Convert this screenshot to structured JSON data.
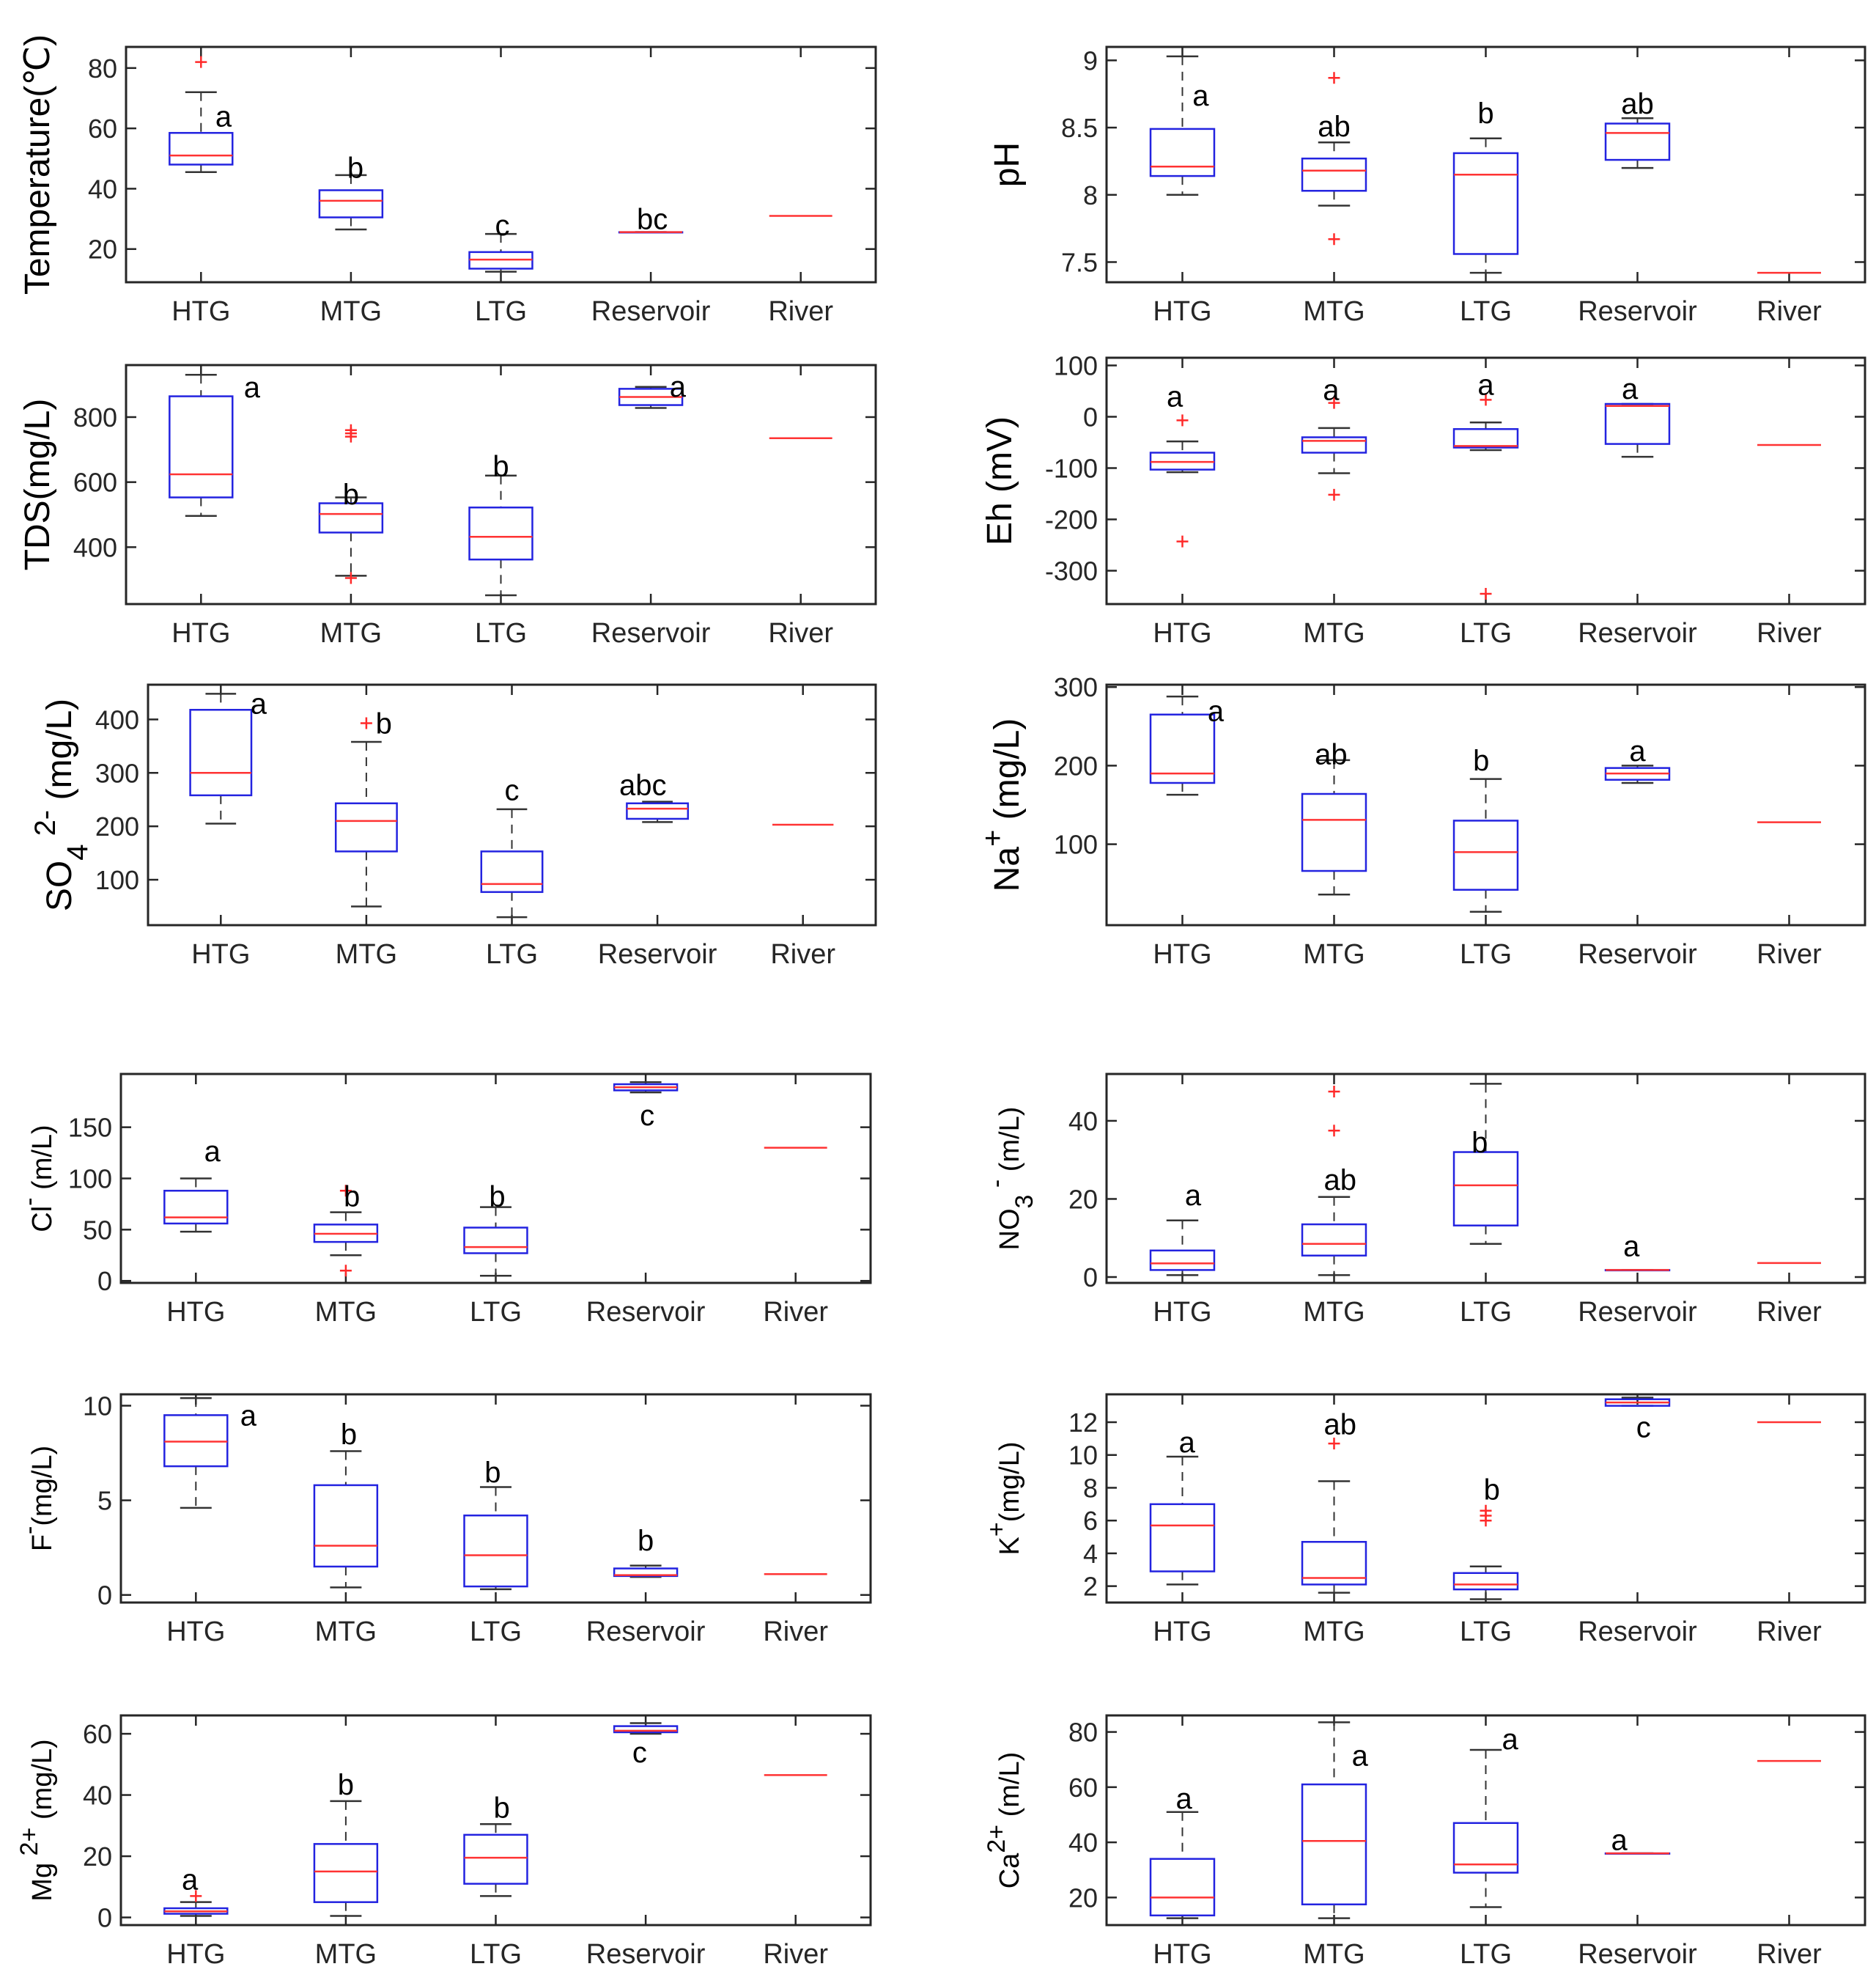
{
  "figure": {
    "categories": [
      "HTG",
      "MTG",
      "LTG",
      "Reservoir",
      "River"
    ]
  },
  "chart_data": [
    {
      "type": "box",
      "ylabel": "Temperature(℃)",
      "ylim": [
        9,
        87
      ],
      "yticks": [
        20,
        40,
        60,
        80
      ],
      "boxes": [
        {
          "category": "HTG",
          "whisker_low": 45.5,
          "q1": 48,
          "median": 51,
          "q3": 58.5,
          "whisker_high": 72,
          "outliers": [
            82
          ]
        },
        {
          "category": "MTG",
          "whisker_low": 26.5,
          "q1": 30.5,
          "median": 36,
          "q3": 39.5,
          "whisker_high": 44.5,
          "outliers": []
        },
        {
          "category": "LTG",
          "whisker_low": 12.5,
          "q1": 13.5,
          "median": 16.5,
          "q3": 19,
          "whisker_high": 25,
          "outliers": []
        },
        {
          "category": "Reservoir",
          "whisker_low": 25.6,
          "q1": 25.6,
          "median": 25.6,
          "q3": 25.6,
          "whisker_high": 25.6,
          "outliers": []
        },
        {
          "category": "River",
          "median": 31
        }
      ],
      "letters": [
        {
          "category": "HTG",
          "text": "a",
          "y": 64,
          "dx": 0.15
        },
        {
          "category": "MTG",
          "text": "b",
          "y": 47,
          "dx": 0.03
        },
        {
          "category": "LTG",
          "text": "c",
          "y": 28,
          "dx": 0.01
        },
        {
          "category": "Reservoir",
          "text": "bc",
          "y": 30,
          "dx": 0.01
        }
      ]
    },
    {
      "type": "box",
      "ylabel": "pH",
      "ylim": [
        7.35,
        9.1
      ],
      "yticks": [
        7.5,
        8,
        8.5,
        9
      ],
      "boxes": [
        {
          "category": "HTG",
          "whisker_low": 8.0,
          "q1": 8.14,
          "median": 8.21,
          "q3": 8.49,
          "whisker_high": 9.03,
          "outliers": []
        },
        {
          "category": "MTG",
          "whisker_low": 7.92,
          "q1": 8.03,
          "median": 8.18,
          "q3": 8.27,
          "whisker_high": 8.39,
          "outliers": [
            8.87,
            7.67
          ]
        },
        {
          "category": "LTG",
          "whisker_low": 7.42,
          "q1": 7.56,
          "median": 8.15,
          "q3": 8.31,
          "whisker_high": 8.42,
          "outliers": []
        },
        {
          "category": "Reservoir",
          "whisker_low": 8.2,
          "q1": 8.26,
          "median": 8.46,
          "q3": 8.53,
          "whisker_high": 8.57,
          "outliers": []
        },
        {
          "category": "River",
          "median": 7.42
        }
      ],
      "letters": [
        {
          "category": "HTG",
          "text": "a",
          "y": 8.74,
          "dx": 0.12
        },
        {
          "category": "MTG",
          "text": "ab",
          "y": 8.51,
          "dx": 0
        },
        {
          "category": "LTG",
          "text": "b",
          "y": 8.61,
          "dx": 0
        },
        {
          "category": "Reservoir",
          "text": "ab",
          "y": 8.68,
          "dx": 0
        }
      ]
    },
    {
      "type": "box",
      "ylabel": "TDS(mg/L)",
      "ylim": [
        225,
        960
      ],
      "yticks": [
        400,
        600,
        800
      ],
      "boxes": [
        {
          "category": "HTG",
          "whisker_low": 496,
          "q1": 553,
          "median": 624,
          "q3": 864,
          "whisker_high": 930,
          "outliers": []
        },
        {
          "category": "MTG",
          "whisker_low": 312,
          "q1": 445,
          "median": 502,
          "q3": 535,
          "whisker_high": 553,
          "outliers": [
            760,
            750,
            740,
            305
          ]
        },
        {
          "category": "LTG",
          "whisker_low": 252,
          "q1": 362,
          "median": 432,
          "q3": 522,
          "whisker_high": 620,
          "outliers": []
        },
        {
          "category": "Reservoir",
          "whisker_low": 828,
          "q1": 837,
          "median": 862,
          "q3": 887,
          "whisker_high": 893,
          "outliers": []
        },
        {
          "category": "River",
          "median": 735
        }
      ],
      "letters": [
        {
          "category": "HTG",
          "text": "a",
          "y": 892,
          "dx": 0.34
        },
        {
          "category": "MTG",
          "text": "b",
          "y": 563,
          "dx": 0
        },
        {
          "category": "LTG",
          "text": "b",
          "y": 650,
          "dx": 0
        },
        {
          "category": "Reservoir",
          "text": "a",
          "y": 895,
          "dx": 0.18
        }
      ]
    },
    {
      "type": "box",
      "ylabel": "Eh (mV)",
      "ylim": [
        -365,
        115
      ],
      "yticks": [
        -300,
        -200,
        -100,
        0,
        100
      ],
      "boxes": [
        {
          "category": "HTG",
          "whisker_low": -108,
          "q1": -103,
          "median": -88,
          "q3": -70,
          "whisker_high": -48,
          "outliers": [
            -7,
            -243
          ]
        },
        {
          "category": "MTG",
          "whisker_low": -110,
          "q1": -70,
          "median": -47,
          "q3": -40,
          "whisker_high": -22,
          "outliers": [
            27,
            -152
          ]
        },
        {
          "category": "LTG",
          "whisker_low": -65,
          "q1": -60,
          "median": -57,
          "q3": -24,
          "whisker_high": -11,
          "outliers": [
            33,
            -345
          ]
        },
        {
          "category": "Reservoir",
          "whisker_low": -78,
          "q1": -53,
          "median": 21,
          "q3": 25,
          "whisker_high": 25,
          "outliers": []
        },
        {
          "category": "River",
          "median": -55
        }
      ],
      "letters": [
        {
          "category": "HTG",
          "text": "a",
          "y": 40,
          "dx": -0.05
        },
        {
          "category": "MTG",
          "text": "a",
          "y": 53,
          "dx": -0.02
        },
        {
          "category": "LTG",
          "text": "a",
          "y": 63,
          "dx": 0
        },
        {
          "category": "Reservoir",
          "text": "a",
          "y": 55,
          "dx": -0.05
        }
      ]
    },
    {
      "type": "box",
      "ylabel": "SO4 2- (mg/L)",
      "ylim": [
        15,
        465
      ],
      "yticks": [
        100,
        200,
        300,
        400
      ],
      "boxes": [
        {
          "category": "HTG",
          "whisker_low": 205,
          "q1": 258,
          "median": 300,
          "q3": 418,
          "whisker_high": 448,
          "outliers": []
        },
        {
          "category": "MTG",
          "whisker_low": 50,
          "q1": 153,
          "median": 210,
          "q3": 243,
          "whisker_high": 358,
          "outliers": [
            393
          ]
        },
        {
          "category": "LTG",
          "whisker_low": 30,
          "q1": 77,
          "median": 92,
          "q3": 153,
          "whisker_high": 232,
          "outliers": []
        },
        {
          "category": "Reservoir",
          "whisker_low": 208,
          "q1": 214,
          "median": 233,
          "q3": 243,
          "whisker_high": 246,
          "outliers": []
        },
        {
          "category": "River",
          "median": 203
        }
      ],
      "letters": [
        {
          "category": "HTG",
          "text": "a",
          "y": 430,
          "dx": 0.26
        },
        {
          "category": "MTG",
          "text": "b",
          "y": 393,
          "dx": 0.12
        },
        {
          "category": "LTG",
          "text": "c",
          "y": 268,
          "dx": 0
        },
        {
          "category": "Reservoir",
          "text": "abc",
          "y": 278,
          "dx": -0.1
        }
      ]
    },
    {
      "type": "box",
      "ylabel": "Na+ (mg/L)",
      "ylim": [
        -3,
        303
      ],
      "yticks": [
        100,
        200,
        300
      ],
      "boxes": [
        {
          "category": "HTG",
          "whisker_low": 163,
          "q1": 178,
          "median": 190,
          "q3": 265,
          "whisker_high": 288,
          "outliers": []
        },
        {
          "category": "MTG",
          "whisker_low": 36,
          "q1": 66,
          "median": 131,
          "q3": 164,
          "whisker_high": 207,
          "outliers": []
        },
        {
          "category": "LTG",
          "whisker_low": 14,
          "q1": 42,
          "median": 90,
          "q3": 130,
          "whisker_high": 183,
          "outliers": []
        },
        {
          "category": "Reservoir",
          "whisker_low": 178,
          "q1": 182,
          "median": 190,
          "q3": 197,
          "whisker_high": 200,
          "outliers": []
        },
        {
          "category": "River",
          "median": 128
        }
      ],
      "letters": [
        {
          "category": "HTG",
          "text": "a",
          "y": 270,
          "dx": 0.22
        },
        {
          "category": "MTG",
          "text": "ab",
          "y": 215,
          "dx": -0.02
        },
        {
          "category": "LTG",
          "text": "b",
          "y": 207,
          "dx": -0.03
        },
        {
          "category": "Reservoir",
          "text": "a",
          "y": 219,
          "dx": 0
        }
      ]
    },
    {
      "type": "box",
      "ylabel": "Cl- (m/L)",
      "ylim": [
        -2,
        202
      ],
      "yticks": [
        0,
        50,
        100,
        150
      ],
      "boxes": [
        {
          "category": "HTG",
          "whisker_low": 48,
          "q1": 56,
          "median": 62,
          "q3": 88,
          "whisker_high": 100,
          "outliers": []
        },
        {
          "category": "MTG",
          "whisker_low": 25,
          "q1": 38,
          "median": 46,
          "q3": 55,
          "whisker_high": 67,
          "outliers": [
            88,
            10
          ]
        },
        {
          "category": "LTG",
          "whisker_low": 5,
          "q1": 27,
          "median": 33,
          "q3": 52,
          "whisker_high": 72,
          "outliers": []
        },
        {
          "category": "Reservoir",
          "whisker_low": 184,
          "q1": 186,
          "median": 189,
          "q3": 192,
          "whisker_high": 194,
          "outliers": []
        },
        {
          "category": "River",
          "median": 130
        }
      ],
      "letters": [
        {
          "category": "HTG",
          "text": "a",
          "y": 127,
          "dx": 0.11
        },
        {
          "category": "MTG",
          "text": "b",
          "y": 83,
          "dx": 0.04
        },
        {
          "category": "LTG",
          "text": "b",
          "y": 83,
          "dx": 0.01
        },
        {
          "category": "Reservoir",
          "text": "c",
          "y": 162,
          "dx": 0.01
        }
      ]
    },
    {
      "type": "box",
      "ylabel": "NO3 - (m/L)",
      "ylim": [
        -1.5,
        52
      ],
      "yticks": [
        0,
        20,
        40
      ],
      "boxes": [
        {
          "category": "HTG",
          "whisker_low": 0.5,
          "q1": 1.8,
          "median": 3.5,
          "q3": 6.8,
          "whisker_high": 14.5,
          "outliers": []
        },
        {
          "category": "MTG",
          "whisker_low": 0.5,
          "q1": 5.5,
          "median": 8.5,
          "q3": 13.5,
          "whisker_high": 20.5,
          "outliers": [
            47.5,
            37.5
          ]
        },
        {
          "category": "LTG",
          "whisker_low": 8.5,
          "q1": 13.2,
          "median": 23.5,
          "q3": 32,
          "whisker_high": 49.5,
          "outliers": []
        },
        {
          "category": "Reservoir",
          "whisker_low": 1.8,
          "q1": 1.8,
          "median": 1.8,
          "q3": 1.8,
          "whisker_high": 1.8,
          "outliers": []
        },
        {
          "category": "River",
          "median": 3.6
        }
      ],
      "letters": [
        {
          "category": "HTG",
          "text": "a",
          "y": 21,
          "dx": 0.07
        },
        {
          "category": "MTG",
          "text": "ab",
          "y": 25,
          "dx": 0.04
        },
        {
          "category": "LTG",
          "text": "b",
          "y": 34.5,
          "dx": -0.04
        },
        {
          "category": "Reservoir",
          "text": "a",
          "y": 8,
          "dx": -0.04
        }
      ]
    },
    {
      "type": "box",
      "ylabel": "F- (mg/L)",
      "ylim": [
        -0.4,
        10.6
      ],
      "yticks": [
        0,
        5,
        10
      ],
      "boxes": [
        {
          "category": "HTG",
          "whisker_low": 4.6,
          "q1": 6.8,
          "median": 8.1,
          "q3": 9.5,
          "whisker_high": 10.4,
          "outliers": []
        },
        {
          "category": "MTG",
          "whisker_low": 0.4,
          "q1": 1.5,
          "median": 2.6,
          "q3": 5.8,
          "whisker_high": 7.6,
          "outliers": []
        },
        {
          "category": "LTG",
          "whisker_low": 0.3,
          "q1": 0.45,
          "median": 2.1,
          "q3": 4.2,
          "whisker_high": 5.7,
          "outliers": []
        },
        {
          "category": "Reservoir",
          "whisker_low": 0.95,
          "q1": 1.0,
          "median": 1.05,
          "q3": 1.4,
          "whisker_high": 1.55,
          "outliers": []
        },
        {
          "category": "River",
          "median": 1.1
        }
      ],
      "letters": [
        {
          "category": "HTG",
          "text": "a",
          "y": 9.5,
          "dx": 0.35
        },
        {
          "category": "MTG",
          "text": "b",
          "y": 8.5,
          "dx": 0.02
        },
        {
          "category": "LTG",
          "text": "b",
          "y": 6.5,
          "dx": -0.02
        },
        {
          "category": "Reservoir",
          "text": "b",
          "y": 2.9,
          "dx": 0
        }
      ]
    },
    {
      "type": "box",
      "ylabel": "K+ (mg/L)",
      "ylim": [
        1,
        13.7
      ],
      "yticks": [
        2,
        4,
        6,
        8,
        10,
        12
      ],
      "boxes": [
        {
          "category": "HTG",
          "whisker_low": 2.1,
          "q1": 2.9,
          "median": 5.7,
          "q3": 7.0,
          "whisker_high": 9.9,
          "outliers": []
        },
        {
          "category": "MTG",
          "whisker_low": 1.6,
          "q1": 2.1,
          "median": 2.5,
          "q3": 4.7,
          "whisker_high": 8.4,
          "outliers": [
            10.7
          ]
        },
        {
          "category": "LTG",
          "whisker_low": 1.2,
          "q1": 1.8,
          "median": 2.1,
          "q3": 2.8,
          "whisker_high": 3.2,
          "outliers": [
            6.6,
            6.3,
            6.0
          ]
        },
        {
          "category": "Reservoir",
          "whisker_low": 13.0,
          "q1": 13.0,
          "median": 13.2,
          "q3": 13.4,
          "whisker_high": 13.5,
          "outliers": []
        },
        {
          "category": "River",
          "median": 12.0
        }
      ],
      "letters": [
        {
          "category": "HTG",
          "text": "a",
          "y": 10.8,
          "dx": 0.03
        },
        {
          "category": "MTG",
          "text": "ab",
          "y": 11.9,
          "dx": 0.04
        },
        {
          "category": "LTG",
          "text": "b",
          "y": 7.9,
          "dx": 0.04
        },
        {
          "category": "Reservoir",
          "text": "c",
          "y": 11.7,
          "dx": 0.04
        }
      ]
    },
    {
      "type": "box",
      "ylabel": "Mg 2+ (mg/L)",
      "ylim": [
        -2.5,
        66
      ],
      "yticks": [
        0,
        20,
        40,
        60
      ],
      "boxes": [
        {
          "category": "HTG",
          "whisker_low": 0.5,
          "q1": 1.2,
          "median": 2,
          "q3": 3,
          "whisker_high": 5,
          "outliers": [
            7
          ]
        },
        {
          "category": "MTG",
          "whisker_low": 0.5,
          "q1": 5,
          "median": 15,
          "q3": 24,
          "whisker_high": 38,
          "outliers": []
        },
        {
          "category": "LTG",
          "whisker_low": 7,
          "q1": 11,
          "median": 19.5,
          "q3": 27,
          "whisker_high": 30.5,
          "outliers": []
        },
        {
          "category": "Reservoir",
          "whisker_low": 60,
          "q1": 60.5,
          "median": 61,
          "q3": 62.5,
          "whisker_high": 63.5,
          "outliers": []
        },
        {
          "category": "River",
          "median": 46.5
        }
      ],
      "letters": [
        {
          "category": "HTG",
          "text": "a",
          "y": 12.5,
          "dx": -0.04
        },
        {
          "category": "MTG",
          "text": "b",
          "y": 43.5,
          "dx": 0
        },
        {
          "category": "LTG",
          "text": "b",
          "y": 36,
          "dx": 0.04
        },
        {
          "category": "Reservoir",
          "text": "c",
          "y": 54,
          "dx": -0.04
        }
      ]
    },
    {
      "type": "box",
      "ylabel": "Ca2+ (m/L)",
      "ylim": [
        10,
        86
      ],
      "yticks": [
        20,
        40,
        60,
        80
      ],
      "boxes": [
        {
          "category": "HTG",
          "whisker_low": 12.5,
          "q1": 13.5,
          "median": 20,
          "q3": 34,
          "whisker_high": 51,
          "outliers": []
        },
        {
          "category": "MTG",
          "whisker_low": 12.5,
          "q1": 17.5,
          "median": 40.5,
          "q3": 61,
          "whisker_high": 83.5,
          "outliers": []
        },
        {
          "category": "LTG",
          "whisker_low": 16.5,
          "q1": 29,
          "median": 32,
          "q3": 47,
          "whisker_high": 73.5,
          "outliers": []
        },
        {
          "category": "Reservoir",
          "whisker_low": 36,
          "q1": 36,
          "median": 36,
          "q3": 36,
          "whisker_high": 36,
          "outliers": []
        },
        {
          "category": "River",
          "median": 69.5
        }
      ],
      "letters": [
        {
          "category": "HTG",
          "text": "a",
          "y": 56,
          "dx": 0.01
        },
        {
          "category": "MTG",
          "text": "a",
          "y": 71.5,
          "dx": 0.17
        },
        {
          "category": "LTG",
          "text": "a",
          "y": 77.5,
          "dx": 0.16
        },
        {
          "category": "Reservoir",
          "text": "a",
          "y": 41,
          "dx": -0.12
        }
      ]
    }
  ]
}
